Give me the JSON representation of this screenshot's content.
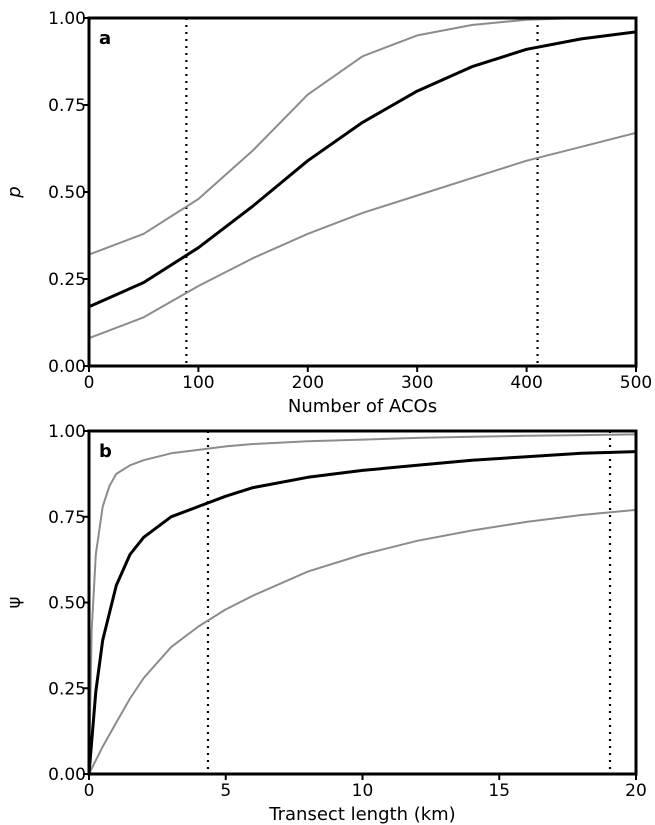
{
  "chart_data": [
    {
      "panel_label": "a",
      "type": "line",
      "xlabel": "Number of ACOs",
      "ylabel": "p",
      "xlim": [
        0,
        500
      ],
      "ylim": [
        0,
        1
      ],
      "xticks": [
        0,
        100,
        200,
        300,
        400,
        500
      ],
      "xtick_labels": [
        "0",
        "100",
        "200",
        "300",
        "400",
        "500"
      ],
      "yticks": [
        0,
        0.25,
        0.5,
        0.75,
        1.0
      ],
      "ytick_labels": [
        "0.00",
        "0.25",
        "0.50",
        "0.75",
        "1.00"
      ],
      "grid": false,
      "reference_lines_x": [
        89,
        410
      ],
      "series": [
        {
          "role": "estimate",
          "color": "#000000",
          "x": [
            0,
            50,
            100,
            150,
            200,
            250,
            300,
            350,
            400,
            450,
            500
          ],
          "y": [
            0.17,
            0.24,
            0.34,
            0.46,
            0.59,
            0.7,
            0.79,
            0.86,
            0.91,
            0.94,
            0.96
          ]
        },
        {
          "role": "upper",
          "color": "#8c8c8c",
          "x": [
            0,
            50,
            100,
            150,
            200,
            250,
            300,
            350,
            400,
            450,
            500
          ],
          "y": [
            0.32,
            0.38,
            0.48,
            0.62,
            0.78,
            0.89,
            0.95,
            0.98,
            0.995,
            1.0,
            1.0
          ]
        },
        {
          "role": "lower",
          "color": "#8c8c8c",
          "x": [
            0,
            50,
            100,
            150,
            200,
            250,
            300,
            350,
            400,
            450,
            500
          ],
          "y": [
            0.08,
            0.14,
            0.23,
            0.31,
            0.38,
            0.44,
            0.49,
            0.54,
            0.59,
            0.63,
            0.67
          ]
        }
      ]
    },
    {
      "panel_label": "b",
      "type": "line",
      "xlabel": "Transect length (km)",
      "ylabel": "ψ",
      "xlim": [
        0,
        20
      ],
      "ylim": [
        0,
        1
      ],
      "xticks": [
        0,
        5,
        10,
        15,
        20
      ],
      "xtick_labels": [
        "0",
        "5",
        "10",
        "15",
        "20"
      ],
      "yticks": [
        0,
        0.25,
        0.5,
        0.75,
        1.0
      ],
      "ytick_labels": [
        "0.00",
        "0.25",
        "0.50",
        "0.75",
        "1.00"
      ],
      "grid": false,
      "reference_lines_x": [
        4.35,
        19.05
      ],
      "series": [
        {
          "role": "estimate",
          "color": "#000000",
          "x": [
            0,
            0.25,
            0.5,
            1,
            1.5,
            2,
            3,
            4,
            5,
            6,
            8,
            10,
            12,
            14,
            16,
            18,
            20
          ],
          "y": [
            0,
            0.24,
            0.39,
            0.55,
            0.64,
            0.69,
            0.75,
            0.78,
            0.81,
            0.835,
            0.865,
            0.885,
            0.9,
            0.915,
            0.925,
            0.935,
            0.94
          ]
        },
        {
          "role": "upper",
          "color": "#8c8c8c",
          "x": [
            0,
            0.1,
            0.25,
            0.5,
            0.75,
            1,
            1.5,
            2,
            3,
            4,
            5,
            6,
            8,
            10,
            12,
            14,
            16,
            18,
            20
          ],
          "y": [
            0,
            0.42,
            0.64,
            0.78,
            0.84,
            0.875,
            0.9,
            0.915,
            0.935,
            0.945,
            0.955,
            0.962,
            0.97,
            0.975,
            0.98,
            0.983,
            0.986,
            0.988,
            0.99
          ]
        },
        {
          "role": "lower",
          "color": "#8c8c8c",
          "x": [
            0,
            0.5,
            1,
            1.5,
            2,
            3,
            4,
            5,
            6,
            8,
            10,
            12,
            14,
            16,
            18,
            20
          ],
          "y": [
            0,
            0.08,
            0.15,
            0.22,
            0.28,
            0.37,
            0.43,
            0.48,
            0.52,
            0.59,
            0.64,
            0.68,
            0.71,
            0.735,
            0.755,
            0.77
          ]
        }
      ]
    }
  ]
}
